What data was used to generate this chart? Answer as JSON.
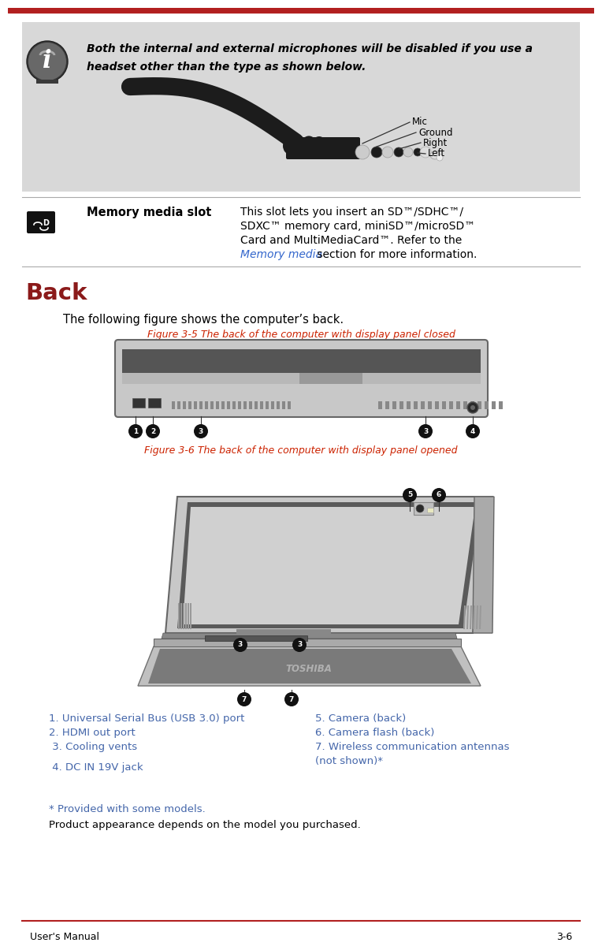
{
  "page_bg": "#ffffff",
  "top_bar_color": "#b22020",
  "info_box_bg": "#d8d8d8",
  "info_text_line1": "Both the internal and external microphones will be disabled if you use a",
  "info_text_line2": "headset other than the type as shown below.",
  "memory_slot_title": "Memory media slot",
  "memory_slot_desc1": "This slot lets you insert an SD™/SDHC™/",
  "memory_slot_desc2": "SDXC™ memory card, miniSD™/microSD™",
  "memory_slot_desc3": "Card and MultiMediaCard™. Refer to the",
  "memory_slot_desc4_link": "Memory media",
  "memory_slot_desc4_rest": " section for more information.",
  "back_title": "Back",
  "back_title_color": "#8b1a1a",
  "intro_text": "The following figure shows the computer’s back.",
  "fig35_caption": "Figure 3-5 The back of the computer with display panel closed",
  "fig36_caption": "Figure 3-6 The back of the computer with display panel opened",
  "caption_color": "#cc2200",
  "list_color": "#4466aa",
  "list_items_left": [
    "1. Universal Serial Bus (USB 3.0) port",
    "2. HDMI out port",
    " 3. Cooling vents",
    "",
    " 4. DC IN 19V jack"
  ],
  "list_items_right_line1": "5. Camera (back)",
  "list_items_right_line2": "6. Camera flash (back)",
  "list_items_right_line3": "7. Wireless communication antennas",
  "list_items_right_line4": "(not shown)*",
  "footer_note1": "* Provided with some models.",
  "footer_note2": "Product appearance depends on the model you purchased.",
  "footer_left": "User's Manual",
  "footer_right": "3-6",
  "divider_color": "#aaaaaa",
  "callout_bg": "#111111",
  "callout_fg": "#ffffff"
}
